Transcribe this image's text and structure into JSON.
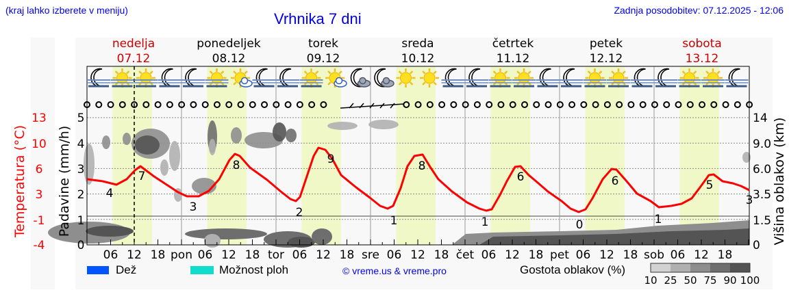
{
  "header": {
    "note": "(kraj lahko izberete v meniju)",
    "title": "Vrhnika 7 dni",
    "updated": "Zadnja posodobitev: 07.12.2025 - 12:06"
  },
  "days": [
    {
      "name": "nedelja",
      "date": "07.12",
      "weekend": true,
      "abbr": ""
    },
    {
      "name": "ponedeljek",
      "date": "08.12",
      "weekend": false,
      "abbr": "pon"
    },
    {
      "name": "torek",
      "date": "09.12",
      "weekend": false,
      "abbr": "tor"
    },
    {
      "name": "sreda",
      "date": "10.12",
      "weekend": false,
      "abbr": "sre"
    },
    {
      "name": "četrtek",
      "date": "11.12",
      "weekend": false,
      "abbr": "čet"
    },
    {
      "name": "petek",
      "date": "12.12",
      "weekend": false,
      "abbr": "pet"
    },
    {
      "name": "sobota",
      "date": "13.12",
      "weekend": true,
      "abbr": "sob"
    }
  ],
  "colors": {
    "temperature": "#ff0000",
    "weekend": "#cc0000",
    "daylight": "#f0f8c8",
    "rain": "#0055ff",
    "storm": "#11ddcc",
    "link": "#0000ee"
  },
  "weather_icons": [
    "moon-fog",
    "sun-fog",
    "sun-fog",
    "moon-fog",
    "moon-fog",
    "sun-fog",
    "sun-cloud",
    "moon-fog",
    "moon-fog",
    "sun-fog",
    "sun-cloud",
    "moon-cloud",
    "moon-cloud",
    "sun",
    "sun",
    "moon-fog",
    "moon-fog",
    "sun-fog",
    "sun-fog",
    "moon-fog",
    "moon-fog",
    "sun-fog",
    "sun-fog",
    "moon-fog",
    "moon-fog",
    "sun-fog",
    "sun-fog",
    "moon-fog"
  ],
  "legend": {
    "rain_label": "Dež",
    "storm_label": "Možnost ploh",
    "copyright": "© vreme.us & vreme.pro",
    "cloud_density_label": "Gostota oblakov (%)",
    "cloud_density_ticks": [
      "10",
      "25",
      "50",
      "75",
      "90",
      "100"
    ],
    "cloud_density_colors": [
      "#d2d2d2",
      "#b0b0b0",
      "#8e8e8e",
      "#6e6e6e",
      "#545454"
    ]
  },
  "chart_data": {
    "type": "line",
    "title": "Vrhnika 7 dni",
    "xlabel": "",
    "x_ticks": [
      "06",
      "12",
      "18",
      "pon",
      "06",
      "12",
      "18",
      "tor",
      "06",
      "12",
      "18",
      "sre",
      "06",
      "12",
      "18",
      "čet",
      "06",
      "12",
      "18",
      "pet",
      "06",
      "12",
      "18",
      "sob",
      "06",
      "12",
      "18"
    ],
    "y_left_outer": {
      "label": "Temperatura (°C)",
      "ticks": [
        "13",
        "10",
        "6",
        "3",
        "-1",
        "-4"
      ],
      "color": "#ff0000"
    },
    "y_left_inner": {
      "label": "Padavine (mm/h)",
      "ticks": [
        "5",
        "4",
        "3",
        "2",
        "1",
        "0"
      ],
      "ylim": [
        0,
        5.5
      ]
    },
    "y_right": {
      "label": "Višina oblakov (km)",
      "ticks": [
        "14",
        "9.0",
        "6.0",
        "3.5",
        "1.5",
        "0"
      ]
    },
    "grid": true,
    "current_time_marker": "07.12 12:00",
    "series": [
      {
        "name": "Temperatura (°C)",
        "hours": [
          0,
          12,
          24,
          36,
          48,
          60,
          72,
          84,
          96,
          108,
          120,
          132,
          144,
          156,
          168
        ],
        "x_hours_detail": [
          0,
          6,
          10,
          12,
          15,
          20,
          26,
          30,
          33,
          37,
          42,
          52,
          57,
          60,
          63,
          68,
          76,
          81,
          83,
          85,
          88,
          92,
          100,
          105,
          108,
          111,
          116,
          124,
          129,
          131,
          134,
          138,
          145,
          153,
          155,
          158,
          162,
          172,
          178,
          184,
          187,
          192,
          201,
          204,
          207,
          210,
          214,
          220,
          226,
          231,
          236,
          239,
          242,
          249,
          254,
          260,
          264,
          268
        ],
        "labels": [
          {
            "hour": 5,
            "value": "4"
          },
          {
            "hour": 14,
            "value": "7"
          },
          {
            "hour": 27,
            "value": "3"
          },
          {
            "hour": 37,
            "value": "8"
          },
          {
            "hour": 51,
            "value": "2"
          },
          {
            "hour": 61,
            "value": "9"
          },
          {
            "hour": 75,
            "value": "1"
          },
          {
            "hour": 85,
            "value": "8"
          },
          {
            "hour": 99,
            "value": "1"
          },
          {
            "hour": 109,
            "value": "6"
          },
          {
            "hour": 123,
            "value": "0"
          },
          {
            "hour": 133,
            "value": "6"
          },
          {
            "hour": 147,
            "value": "1"
          },
          {
            "hour": 157,
            "value": "5"
          },
          {
            "hour": 168,
            "value": "3"
          }
        ],
        "min_max": [
          {
            "day": "07.12",
            "min": 4,
            "max": 7
          },
          {
            "day": "08.12",
            "min": 3,
            "max": 8
          },
          {
            "day": "09.12",
            "min": 2,
            "max": 9
          },
          {
            "day": "10.12",
            "min": 1,
            "max": 8
          },
          {
            "day": "11.12",
            "min": 1,
            "max": 6
          },
          {
            "day": "12.12",
            "min": 0,
            "max": 6
          },
          {
            "day": "13.12",
            "min": 1,
            "max": 5
          }
        ]
      },
      {
        "name": "Padavine (mm/h)",
        "values_note": "no precipitation shown (all ~0)"
      }
    ],
    "precip_symbols": {
      "dry": "o",
      "light_drizzle_hours": [
        60,
        78
      ]
    }
  }
}
